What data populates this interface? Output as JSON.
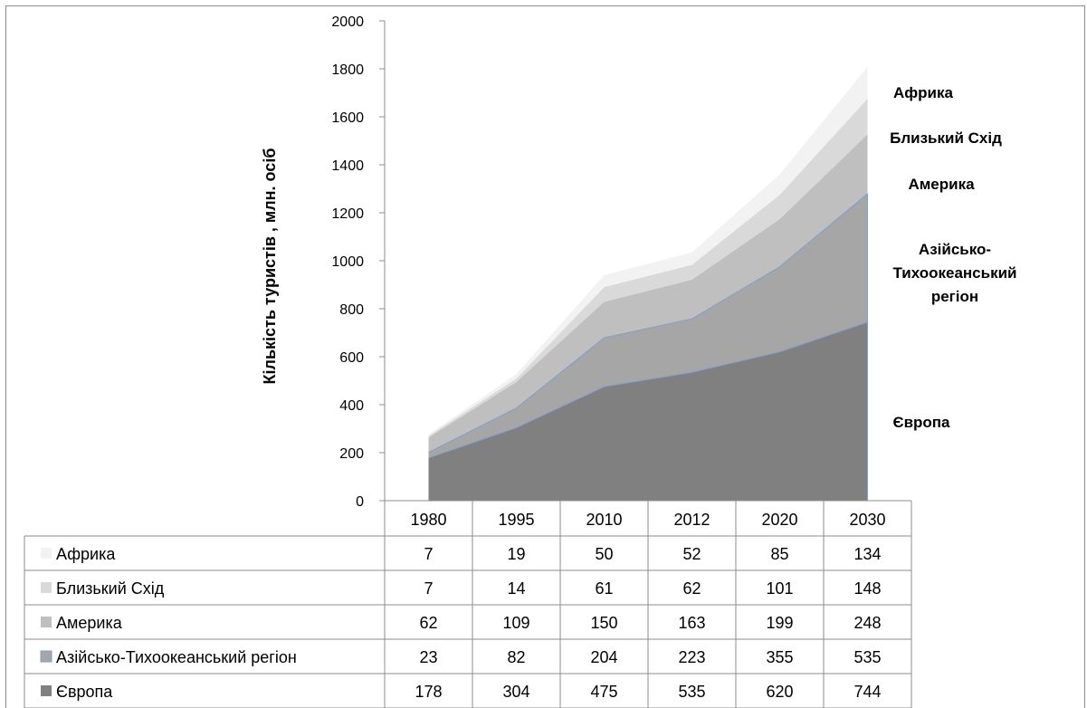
{
  "chart_data": {
    "type": "area",
    "stacked": true,
    "title": "",
    "xlabel": "",
    "ylabel": "Кількість туристів , млн. осіб",
    "ylim": [
      0,
      2000
    ],
    "yticks": [
      0,
      200,
      400,
      600,
      800,
      1000,
      1200,
      1400,
      1600,
      1800,
      2000
    ],
    "categories": [
      "1980",
      "1995",
      "2010",
      "2012",
      "2020",
      "2030"
    ],
    "grid": false,
    "legend": "data-table",
    "series": [
      {
        "name": "Європа",
        "values": [
          178,
          304,
          475,
          535,
          620,
          744
        ],
        "color": "#808080"
      },
      {
        "name": "Азійсько-Тихоокеанський регіон",
        "values": [
          23,
          82,
          204,
          223,
          355,
          535
        ],
        "color": "#a6a6a6"
      },
      {
        "name": "Америка",
        "values": [
          62,
          109,
          150,
          163,
          199,
          248
        ],
        "color": "#bfbfbf"
      },
      {
        "name": "Близький Схід",
        "values": [
          7,
          14,
          61,
          62,
          101,
          148
        ],
        "color": "#d9d9d9"
      },
      {
        "name": "Африка",
        "values": [
          7,
          19,
          50,
          52,
          85,
          134
        ],
        "color": "#f2f2f2"
      }
    ],
    "area_labels": [
      {
        "series": "Африка",
        "lines": [
          "Африка"
        ]
      },
      {
        "series": "Близький Схід",
        "lines": [
          "Близький Схід"
        ]
      },
      {
        "series": "Америка",
        "lines": [
          "Америка"
        ]
      },
      {
        "series": "Азійсько-Тихоокеанський регіон",
        "lines": [
          "Азійсько-",
          "Тихоокеанський",
          "регіон"
        ]
      },
      {
        "series": "Європа",
        "lines": [
          "Європа"
        ]
      }
    ],
    "table_rows": [
      "Африка",
      "Близький Схід",
      "Америка",
      "Азійсько-Тихоокеанський регіон",
      "Європа"
    ]
  }
}
